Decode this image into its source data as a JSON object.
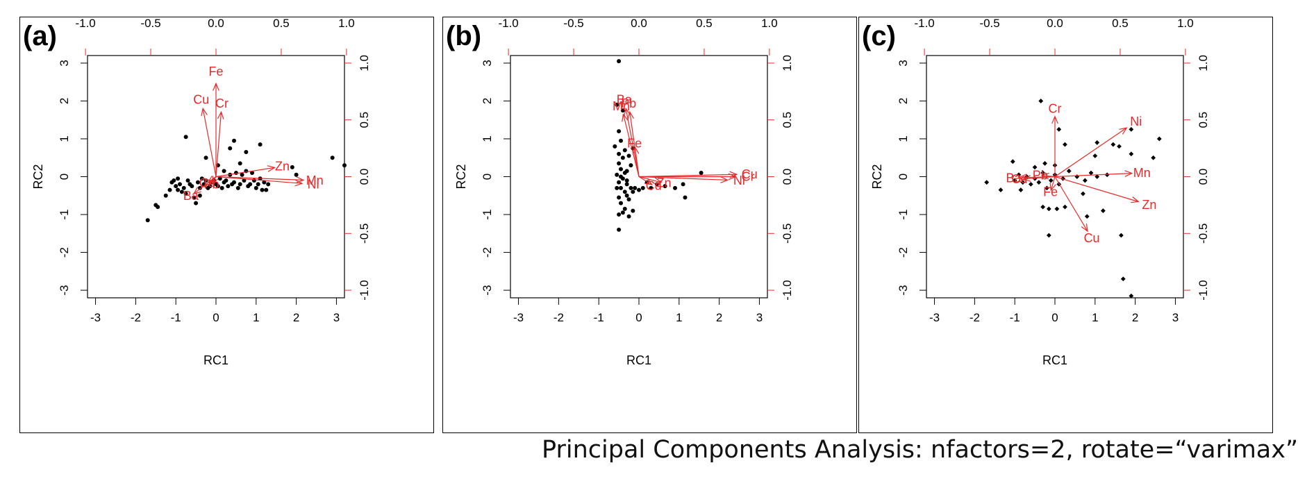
{
  "caption": "Principal Components Analysis: nfactors=2, rotate=“varimax”",
  "colors": {
    "points": "#000000",
    "loadings": "#e8292a",
    "axes": "#000000"
  },
  "chart_data": [
    {
      "panel_label": "(a)",
      "type": "scatter",
      "xlabel": "RC1",
      "ylabel": "RC2",
      "xlim": [
        -3.2,
        3.2
      ],
      "ylim": [
        -3.2,
        3.2
      ],
      "ticks": [
        -3,
        -2,
        -1,
        0,
        1,
        2,
        3
      ],
      "loading_ticks": [
        -1.0,
        -0.5,
        0.0,
        0.5,
        1.0
      ],
      "loading_tick_labels": [
        "-1.0",
        "-0.5",
        "0.0",
        "0.5",
        "1.0"
      ],
      "loadings": [
        {
          "name": "Fe",
          "x": 0.0,
          "y": 0.82
        },
        {
          "name": "Cu",
          "x": -0.1,
          "y": 0.6
        },
        {
          "name": "Cr",
          "x": 0.04,
          "y": 0.57
        },
        {
          "name": "Zn",
          "x": 0.45,
          "y": 0.08
        },
        {
          "name": "Mn",
          "x": 0.67,
          "y": -0.03
        },
        {
          "name": "Ni",
          "x": 0.66,
          "y": -0.06
        },
        {
          "name": "Ba",
          "x": -0.17,
          "y": -0.15
        },
        {
          "name": "Cd",
          "x": -0.06,
          "y": -0.05
        },
        {
          "name": "Pb",
          "x": -0.03,
          "y": -0.06
        }
      ],
      "scores": [
        [
          -1.7,
          -1.15
        ],
        [
          -1.5,
          -0.75
        ],
        [
          -1.45,
          -0.8
        ],
        [
          -1.25,
          -0.5
        ],
        [
          -1.15,
          -0.35
        ],
        [
          -1.1,
          -0.15
        ],
        [
          -1.05,
          -0.1
        ],
        [
          -1.0,
          -0.25
        ],
        [
          -0.95,
          -0.05
        ],
        [
          -0.9,
          -0.2
        ],
        [
          -0.85,
          -0.4
        ],
        [
          -0.8,
          -0.3
        ],
        [
          -0.75,
          -0.45
        ],
        [
          -0.7,
          -0.1
        ],
        [
          -0.65,
          -0.2
        ],
        [
          -0.6,
          -0.25
        ],
        [
          -0.55,
          -0.55
        ],
        [
          -0.5,
          -0.7
        ],
        [
          -0.45,
          -0.15
        ],
        [
          -0.4,
          -0.3
        ],
        [
          -0.35,
          -0.05
        ],
        [
          -0.3,
          -0.2
        ],
        [
          -0.25,
          -0.1
        ],
        [
          -0.2,
          -0.3
        ],
        [
          -0.15,
          -0.25
        ],
        [
          -0.1,
          -0.15
        ],
        [
          -0.05,
          -0.1
        ],
        [
          0.0,
          -0.2
        ],
        [
          0.05,
          -0.25
        ],
        [
          0.1,
          -0.05
        ],
        [
          0.15,
          -0.3
        ],
        [
          0.2,
          -0.15
        ],
        [
          0.25,
          -0.1
        ],
        [
          0.3,
          -0.25
        ],
        [
          0.35,
          0.05
        ],
        [
          0.4,
          -0.2
        ],
        [
          0.45,
          -0.15
        ],
        [
          0.5,
          0.1
        ],
        [
          0.55,
          -0.3
        ],
        [
          0.6,
          -0.2
        ],
        [
          0.65,
          0.05
        ],
        [
          0.7,
          -0.1
        ],
        [
          0.75,
          0.15
        ],
        [
          0.8,
          -0.25
        ],
        [
          0.85,
          -0.2
        ],
        [
          0.9,
          0.1
        ],
        [
          0.95,
          -0.1
        ],
        [
          1.0,
          -0.3
        ],
        [
          1.05,
          -0.2
        ],
        [
          1.1,
          -0.05
        ],
        [
          1.15,
          -0.35
        ],
        [
          1.2,
          -0.15
        ],
        [
          1.25,
          -0.35
        ],
        [
          1.3,
          -0.2
        ],
        [
          -0.75,
          1.05
        ],
        [
          0.45,
          0.95
        ],
        [
          0.35,
          0.75
        ],
        [
          1.1,
          0.85
        ],
        [
          0.75,
          0.65
        ],
        [
          -0.25,
          0.5
        ],
        [
          0.05,
          0.3
        ],
        [
          0.6,
          0.35
        ],
        [
          0.2,
          0.15
        ],
        [
          1.9,
          0.25
        ],
        [
          2.0,
          0.05
        ],
        [
          2.9,
          0.5
        ],
        [
          3.2,
          0.3
        ],
        [
          -0.95,
          -0.35
        ],
        [
          -0.4,
          -0.5
        ]
      ]
    },
    {
      "panel_label": "(b)",
      "type": "scatter",
      "xlabel": "RC1",
      "ylabel": "RC2",
      "xlim": [
        -3.2,
        3.2
      ],
      "ylim": [
        -3.2,
        3.2
      ],
      "ticks": [
        -3,
        -2,
        -1,
        0,
        1,
        2,
        3
      ],
      "loading_ticks": [
        -1.0,
        -0.5,
        0.0,
        0.5,
        1.0
      ],
      "loading_tick_labels": [
        "-1.0",
        "-0.5",
        "0.0",
        "0.5",
        "1.0"
      ],
      "loadings": [
        {
          "name": "Ba",
          "x": -0.1,
          "y": 0.6
        },
        {
          "name": "Pb",
          "x": -0.07,
          "y": 0.57
        },
        {
          "name": "Mn",
          "x": -0.12,
          "y": 0.55
        },
        {
          "name": "Fe",
          "x": -0.03,
          "y": 0.26
        },
        {
          "name": "Cu",
          "x": 0.75,
          "y": 0.02
        },
        {
          "name": "Cr",
          "x": 0.74,
          "y": 0.0
        },
        {
          "name": "Ni",
          "x": 0.68,
          "y": -0.03
        },
        {
          "name": "Zn",
          "x": 0.17,
          "y": -0.05
        },
        {
          "name": "Cd",
          "x": 0.1,
          "y": -0.07
        }
      ],
      "scores": [
        [
          -0.5,
          3.05
        ],
        [
          -0.55,
          1.9
        ],
        [
          -0.4,
          1.75
        ],
        [
          -0.5,
          1.2
        ],
        [
          -0.45,
          0.95
        ],
        [
          -0.5,
          0.6
        ],
        [
          -0.4,
          0.5
        ],
        [
          -0.5,
          0.35
        ],
        [
          -0.45,
          0.2
        ],
        [
          -0.55,
          0.05
        ],
        [
          -0.4,
          -0.05
        ],
        [
          -0.5,
          -0.15
        ],
        [
          -0.45,
          -0.3
        ],
        [
          -0.35,
          -0.4
        ],
        [
          -0.5,
          -0.55
        ],
        [
          -0.45,
          -0.7
        ],
        [
          -0.35,
          -0.85
        ],
        [
          -0.5,
          -1.0
        ],
        [
          -0.5,
          -1.4
        ],
        [
          -0.3,
          -0.2
        ],
        [
          -0.2,
          -0.3
        ],
        [
          -0.15,
          -0.4
        ],
        [
          -0.3,
          0.15
        ],
        [
          -0.2,
          0.3
        ],
        [
          -0.25,
          -0.6
        ],
        [
          -0.1,
          -0.3
        ],
        [
          0.0,
          -0.35
        ],
        [
          0.1,
          -0.3
        ],
        [
          0.2,
          -0.15
        ],
        [
          0.3,
          -0.3
        ],
        [
          0.45,
          -0.2
        ],
        [
          0.65,
          -0.25
        ],
        [
          0.9,
          -0.3
        ],
        [
          1.1,
          -0.2
        ],
        [
          1.15,
          -0.55
        ],
        [
          1.55,
          0.1
        ],
        [
          -0.6,
          0.8
        ],
        [
          -0.35,
          0.7
        ],
        [
          -0.25,
          0.55
        ],
        [
          -0.15,
          0.75
        ],
        [
          -0.3,
          -0.5
        ],
        [
          -0.15,
          -0.9
        ],
        [
          -0.4,
          -0.95
        ],
        [
          -0.25,
          -1.05
        ],
        [
          -0.55,
          -0.3
        ],
        [
          -0.45,
          0.0
        ],
        [
          -0.35,
          0.1
        ],
        [
          -0.3,
          -0.1
        ]
      ]
    },
    {
      "panel_label": "(c)",
      "type": "scatter",
      "xlabel": "RC1",
      "ylabel": "RC2",
      "xlim": [
        -3.2,
        3.2
      ],
      "ylim": [
        -3.2,
        3.2
      ],
      "ticks": [
        -3,
        -2,
        -1,
        0,
        1,
        2,
        3
      ],
      "loading_ticks": [
        -1.0,
        -0.5,
        0.0,
        0.5,
        1.0
      ],
      "loading_tick_labels": [
        "-1.0",
        "-0.5",
        "0.0",
        "0.5",
        "1.0"
      ],
      "loadings": [
        {
          "name": "Cr",
          "x": 0.0,
          "y": 0.53
        },
        {
          "name": "Ni",
          "x": 0.55,
          "y": 0.43
        },
        {
          "name": "Mn",
          "x": 0.59,
          "y": 0.03
        },
        {
          "name": "Zn",
          "x": 0.64,
          "y": -0.22
        },
        {
          "name": "Cu",
          "x": 0.25,
          "y": -0.48
        },
        {
          "name": "Fe",
          "x": -0.03,
          "y": -0.12
        },
        {
          "name": "Ba",
          "x": -0.28,
          "y": -0.01
        },
        {
          "name": "Cd",
          "x": -0.24,
          "y": -0.02
        },
        {
          "name": "Pb",
          "x": -0.1,
          "y": 0.01
        }
      ],
      "scores": [
        [
          -0.35,
          2.0
        ],
        [
          0.1,
          1.25
        ],
        [
          1.9,
          1.25
        ],
        [
          2.6,
          1.0
        ],
        [
          1.05,
          0.9
        ],
        [
          1.45,
          0.85
        ],
        [
          1.6,
          0.8
        ],
        [
          1.0,
          0.55
        ],
        [
          1.9,
          0.6
        ],
        [
          2.45,
          0.5
        ],
        [
          0.25,
          0.85
        ],
        [
          -1.05,
          0.4
        ],
        [
          -1.7,
          -0.15
        ],
        [
          -1.35,
          -0.35
        ],
        [
          -1.0,
          -0.1
        ],
        [
          -0.9,
          0.05
        ],
        [
          -0.8,
          -0.15
        ],
        [
          -0.7,
          0.0
        ],
        [
          -0.6,
          -0.2
        ],
        [
          -0.5,
          -0.05
        ],
        [
          -0.4,
          -0.15
        ],
        [
          -0.3,
          0.1
        ],
        [
          -0.2,
          -0.3
        ],
        [
          -0.1,
          -0.1
        ],
        [
          0.0,
          0.05
        ],
        [
          0.1,
          -0.2
        ],
        [
          0.2,
          -0.05
        ],
        [
          0.35,
          0.15
        ],
        [
          0.55,
          0.0
        ],
        [
          0.75,
          -0.1
        ],
        [
          0.9,
          0.1
        ],
        [
          1.05,
          0.0
        ],
        [
          1.3,
          0.05
        ],
        [
          -0.3,
          -0.8
        ],
        [
          -0.15,
          -0.85
        ],
        [
          0.05,
          -0.85
        ],
        [
          0.25,
          -0.8
        ],
        [
          0.7,
          -0.45
        ],
        [
          0.8,
          -1.05
        ],
        [
          1.2,
          -0.9
        ],
        [
          1.65,
          -1.55
        ],
        [
          -0.15,
          -1.55
        ],
        [
          1.7,
          -2.7
        ],
        [
          1.9,
          -3.15
        ],
        [
          -0.5,
          0.25
        ],
        [
          -0.25,
          0.35
        ],
        [
          0.0,
          0.3
        ],
        [
          -0.85,
          -0.35
        ]
      ]
    }
  ]
}
